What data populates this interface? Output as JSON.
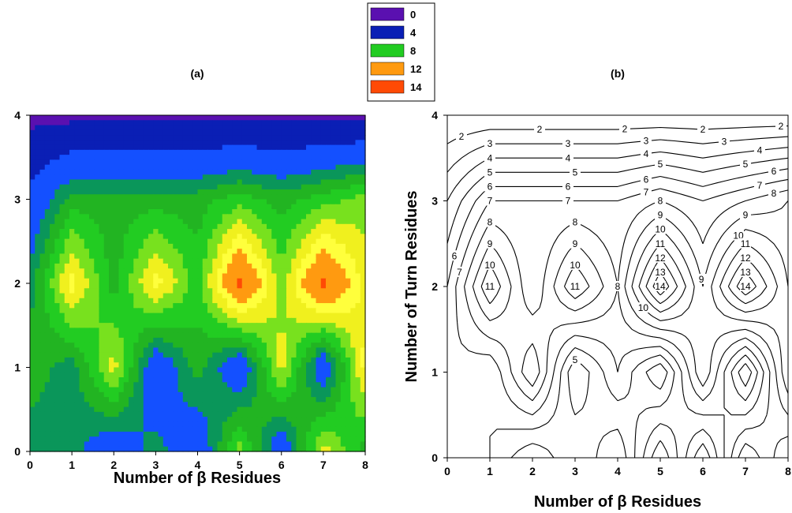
{
  "legend": {
    "entries": [
      {
        "label": "0",
        "color": "#5a10b0"
      },
      {
        "label": "4",
        "color": "#0a1fb5"
      },
      {
        "label": "8",
        "color": "#22cc22"
      },
      {
        "label": "12",
        "color": "#ff9a10"
      },
      {
        "label": "14",
        "color": "#ff4a05"
      }
    ]
  },
  "panel_a": {
    "title": "(a)",
    "xlabel": "Number of β Residues"
  },
  "panel_b": {
    "title": "(b)",
    "xlabel": "Number of β Residues",
    "ylabel": "Number of Turn Residues"
  },
  "chart_data": [
    {
      "type": "heatmap",
      "title": "(a)",
      "xlabel": "Number of β Residues",
      "ylabel": "",
      "x": [
        0,
        1,
        2,
        3,
        4,
        5,
        6,
        7,
        8
      ],
      "y": [
        0,
        1,
        2,
        3,
        4
      ],
      "xlim": [
        0,
        8
      ],
      "ylim": [
        0,
        4
      ],
      "xticks": [
        "0",
        "1",
        "2",
        "3",
        "4",
        "5",
        "6",
        "7",
        "8"
      ],
      "yticks": [
        "0",
        "1",
        "2",
        "3",
        "4"
      ],
      "z": [
        [
          6,
          6,
          4,
          6,
          4,
          9,
          4,
          10,
          7
        ],
        [
          7,
          6,
          10,
          4,
          7,
          4,
          10,
          4,
          11
        ],
        [
          6,
          11,
          7,
          11,
          8,
          14,
          9,
          14,
          10
        ],
        [
          4,
          7,
          7,
          7,
          7,
          8,
          7,
          8,
          9
        ],
        [
          1,
          1,
          1,
          1,
          1,
          1,
          1,
          1,
          1
        ]
      ],
      "colorbar": [
        0,
        4,
        8,
        12,
        14
      ]
    },
    {
      "type": "heatmap",
      "title": "(b)",
      "xlabel": "Number of β Residues",
      "ylabel": "Number of Turn Residues",
      "x": [
        0,
        1,
        2,
        3,
        4,
        5,
        6,
        7,
        8
      ],
      "y": [
        0,
        1,
        2,
        3,
        4
      ],
      "xlim": [
        0,
        8
      ],
      "ylim": [
        0,
        4
      ],
      "xticks": [
        "0",
        "1",
        "2",
        "3",
        "4",
        "5",
        "6",
        "7",
        "8"
      ],
      "yticks": [
        "0",
        "1",
        "2",
        "3",
        "4"
      ],
      "z": [
        [
          6,
          6,
          4,
          6,
          4,
          9,
          4,
          10,
          7
        ],
        [
          7,
          6,
          10,
          4,
          7,
          4,
          10,
          4,
          11
        ],
        [
          6,
          11,
          7,
          11,
          8,
          14,
          9,
          14,
          10
        ],
        [
          4,
          7,
          7,
          7,
          7,
          8,
          7,
          8,
          9
        ],
        [
          1,
          1,
          1,
          1,
          1,
          1,
          1,
          1,
          1
        ]
      ],
      "contour_levels": [
        1,
        2,
        3,
        4,
        5,
        6,
        7,
        8,
        9,
        10,
        11,
        12,
        13,
        14
      ]
    }
  ]
}
